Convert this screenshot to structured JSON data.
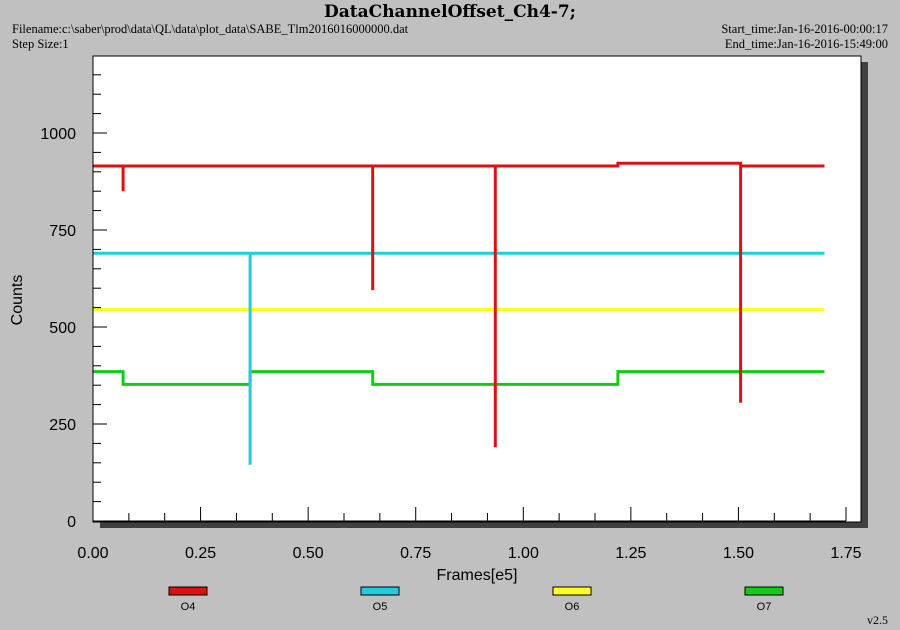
{
  "header": {
    "title": "DataChannelOffset_Ch4-7;",
    "filename": "Filename:c:\\saber\\prod\\data\\QL\\data\\plot_data\\SABE_Tlm2016016000000.dat",
    "step_size": "Step Size:1",
    "start_time": "Start_time:Jan-16-2016-00:00:17",
    "end_time": "End_time:Jan-16-2016-15:49:00"
  },
  "version": "v2.5",
  "colors": {
    "background": "#c0c0c0",
    "plot_area": "#ffffff",
    "O4": "#dd1111",
    "O5": "#22ccdd",
    "O6": "#ffff22",
    "O7": "#11cc11"
  },
  "chart_data": {
    "type": "line",
    "title": "DataChannelOffset_Ch4-7;",
    "xlabel": "Frames[e5]",
    "ylabel": "Counts",
    "xlim": [
      0,
      1.75
    ],
    "ylim": [
      0,
      1000
    ],
    "x_ticks": [
      "0.00",
      "0.25",
      "0.50",
      "0.75",
      "1.00",
      "1.25",
      "1.50",
      "1.75"
    ],
    "y_ticks": [
      "0",
      "250",
      "500",
      "750",
      "1000"
    ],
    "grid": false,
    "legend_position": "bottom",
    "series": [
      {
        "name": "O4",
        "points": [
          [
            0.0,
            915
          ],
          [
            0.07,
            915
          ],
          [
            0.07,
            850
          ],
          [
            0.07,
            915
          ],
          [
            0.65,
            915
          ],
          [
            0.65,
            595
          ],
          [
            0.65,
            915
          ],
          [
            0.935,
            915
          ],
          [
            0.935,
            190
          ],
          [
            0.935,
            915
          ],
          [
            1.22,
            915
          ],
          [
            1.22,
            922
          ],
          [
            1.505,
            922
          ],
          [
            1.505,
            305
          ],
          [
            1.505,
            915
          ],
          [
            1.7,
            915
          ]
        ]
      },
      {
        "name": "O5",
        "points": [
          [
            0.0,
            690
          ],
          [
            0.365,
            690
          ],
          [
            0.365,
            145
          ],
          [
            0.365,
            690
          ],
          [
            1.7,
            690
          ]
        ]
      },
      {
        "name": "O6",
        "points": [
          [
            0.0,
            545
          ],
          [
            1.7,
            545
          ]
        ]
      },
      {
        "name": "O7",
        "points": [
          [
            0.0,
            385
          ],
          [
            0.07,
            385
          ],
          [
            0.07,
            352
          ],
          [
            0.365,
            352
          ],
          [
            0.365,
            385
          ],
          [
            0.65,
            385
          ],
          [
            0.65,
            352
          ],
          [
            1.22,
            352
          ],
          [
            1.22,
            385
          ],
          [
            1.7,
            385
          ]
        ]
      }
    ]
  }
}
